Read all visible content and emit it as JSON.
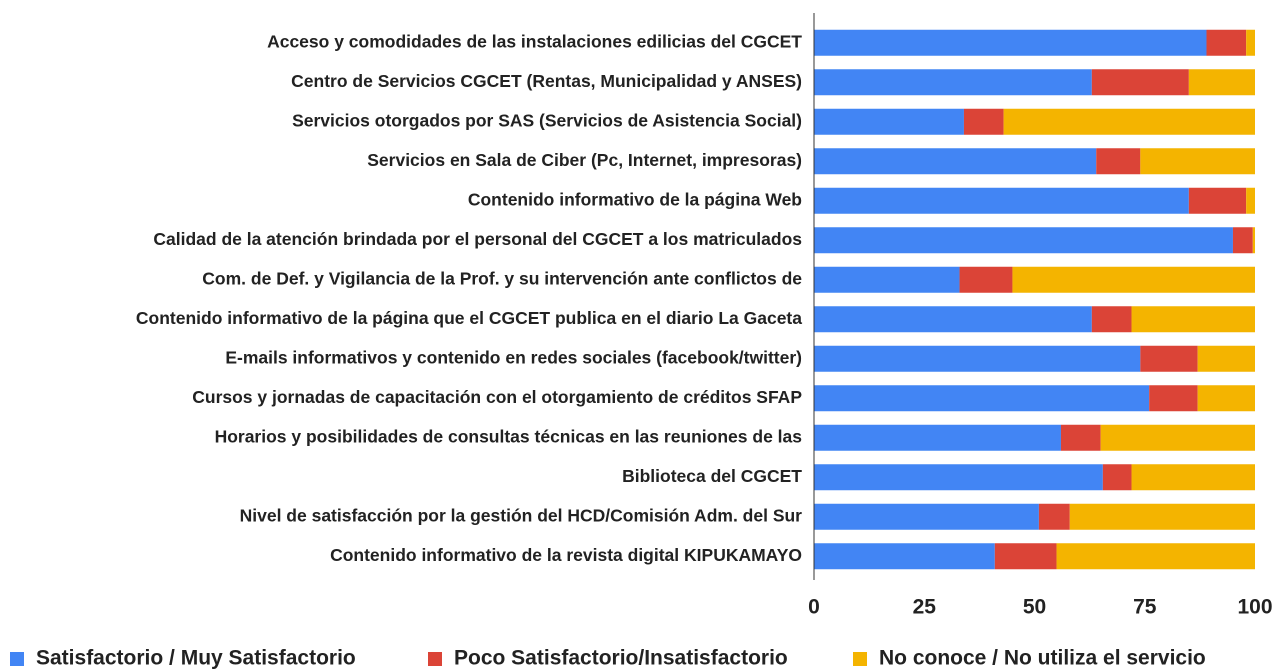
{
  "chart_data": {
    "type": "stacked_barh",
    "categories": [
      "Acceso y comodidades de las instalaciones edilicias del CGCET",
      "Centro de Servicios CGCET (Rentas, Municipalidad y ANSES)",
      "Servicios otorgados por SAS (Servicios de Asistencia Social)",
      "Servicios en Sala de Ciber (Pc, Internet, impresoras)",
      "Contenido informativo de la página Web",
      "Calidad de la atención brindada por el personal del CGCET a los matriculados",
      "Com. de Def. y Vigilancia de la Prof. y su intervención ante conflictos de",
      "Contenido informativo de la página que el CGCET publica en el diario La Gaceta",
      "E-mails informativos y contenido en redes sociales (facebook/twitter)",
      "Cursos y jornadas de capacitación con el otorgamiento de créditos SFAP",
      "Horarios y posibilidades de consultas técnicas en las reuniones de las",
      "Biblioteca del CGCET",
      "Nivel de satisfacción por la gestión del HCD/Comisión Adm. del Sur",
      "Contenido informativo de la revista digital KIPUKAMAYO"
    ],
    "series": [
      {
        "name": "Satisfactorio / Muy Satisfactorio",
        "color": "#4285f4",
        "values": [
          89,
          63,
          34,
          64,
          85,
          95,
          33,
          63,
          74,
          76,
          56,
          65.5,
          51,
          41
        ]
      },
      {
        "name": "Poco Satisfactorio/Insatisfactorio",
        "color": "#db4437",
        "values": [
          9,
          22,
          9,
          10,
          13,
          4.5,
          12,
          9,
          13,
          11,
          9,
          6.5,
          7,
          14
        ]
      },
      {
        "name": "No conoce / No utiliza el servicio",
        "color": "#f4b400",
        "values": [
          2,
          15,
          57,
          26,
          2,
          0.5,
          55,
          28,
          13,
          13,
          35,
          28,
          42,
          45
        ]
      }
    ],
    "xlim": [
      0,
      100
    ],
    "xticks": [
      0,
      25,
      50,
      75,
      100
    ],
    "legend": "bottom"
  }
}
